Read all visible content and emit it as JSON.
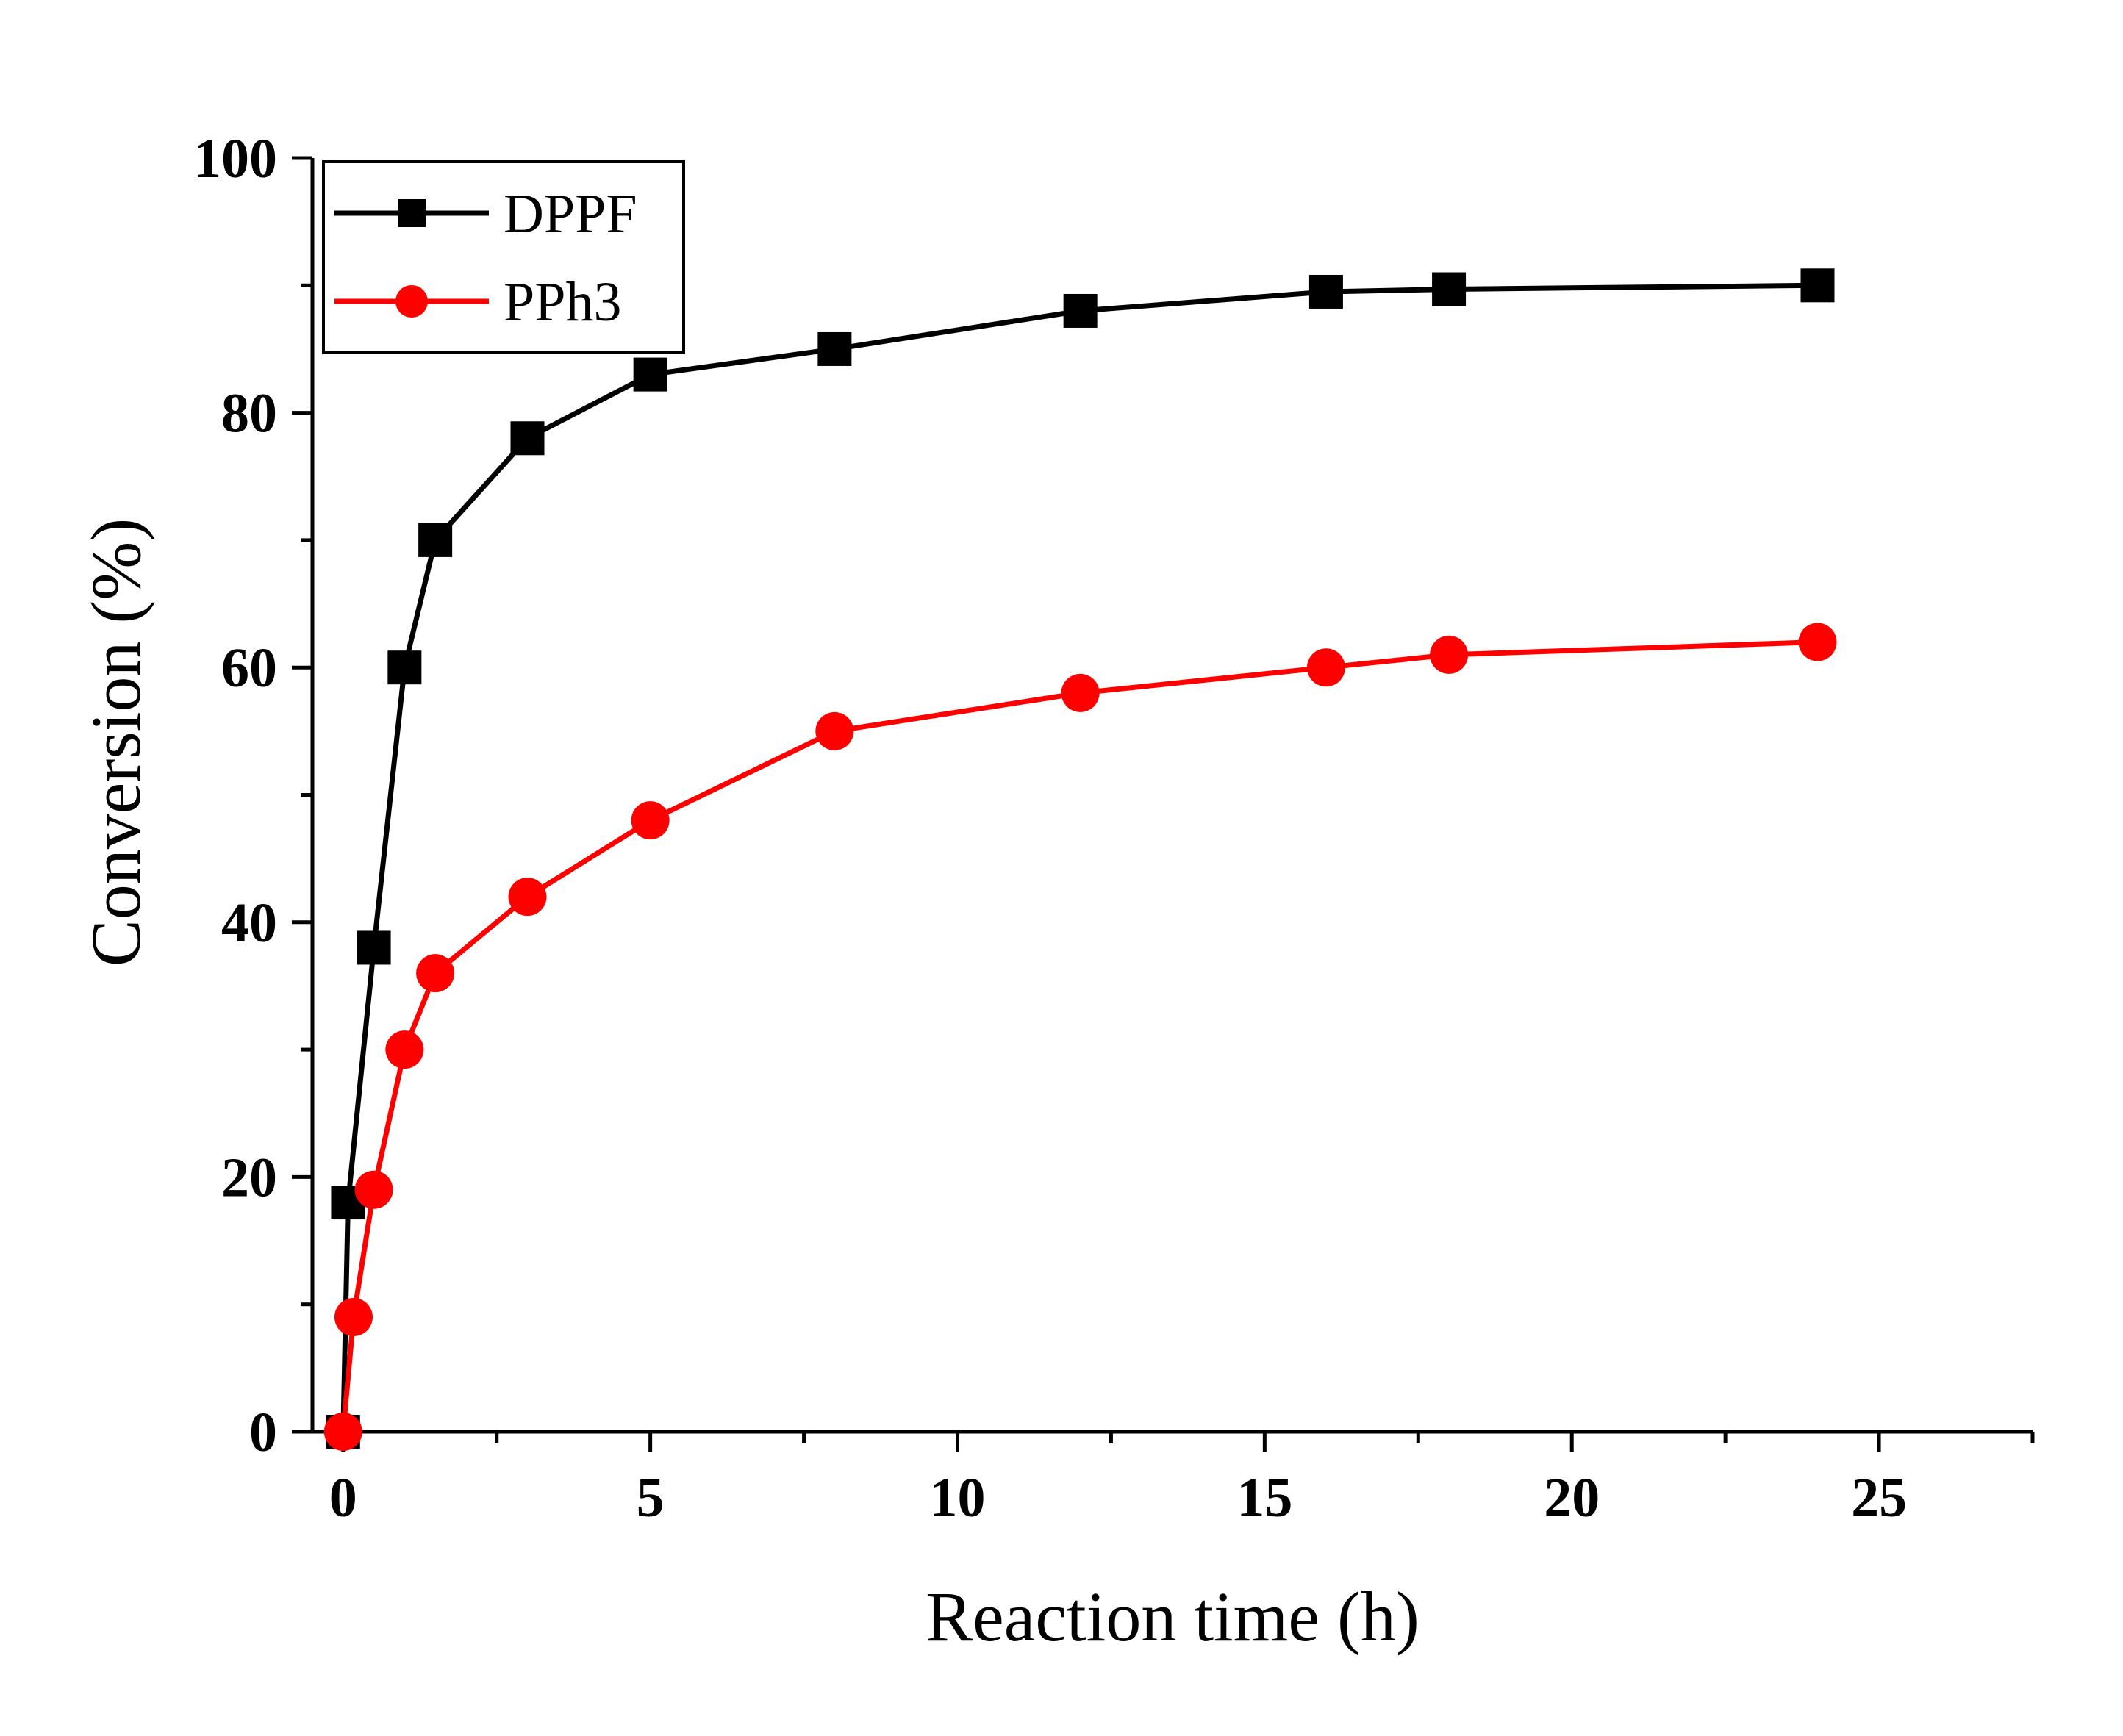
{
  "chart_data": {
    "type": "line",
    "xlabel": "Reaction time (h)",
    "ylabel": "Conversion (%)",
    "xlim": [
      -0.5,
      27.5
    ],
    "ylim": [
      0,
      100
    ],
    "xticks": [
      0,
      5,
      10,
      15,
      20,
      25
    ],
    "yticks": [
      0,
      20,
      40,
      60,
      80,
      100
    ],
    "grid": false,
    "legend_position": "top-left",
    "series": [
      {
        "name": "DPPF",
        "marker": "square",
        "color": "#000000",
        "x": [
          0,
          0.08,
          0.5,
          1,
          1.5,
          3,
          5,
          8,
          12,
          16,
          18,
          24
        ],
        "y": [
          0,
          18,
          38,
          60,
          70,
          78,
          83,
          85,
          88,
          89.5,
          89.7,
          90
        ]
      },
      {
        "name": "PPh3",
        "marker": "circle",
        "color": "#ff0000",
        "x": [
          0,
          0.17,
          0.5,
          1,
          1.5,
          3,
          5,
          8,
          12,
          16,
          18,
          24
        ],
        "y": [
          0,
          9,
          19,
          30,
          36,
          42,
          48,
          55,
          58,
          60,
          61,
          62
        ]
      }
    ]
  }
}
